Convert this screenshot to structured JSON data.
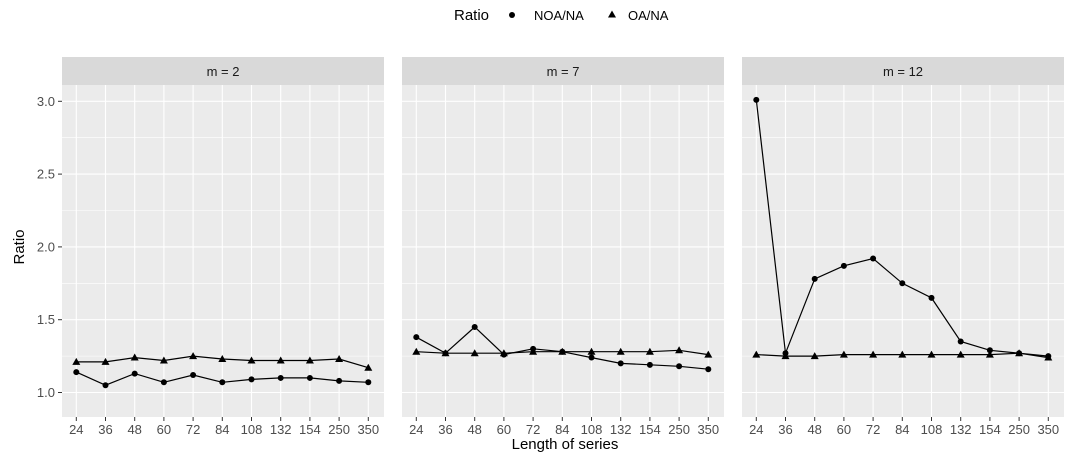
{
  "chart_data": {
    "type": "line",
    "xlabel": "Length of series",
    "ylabel": "Ratio",
    "ylim": [
      1.0,
      3.0
    ],
    "yticks": [
      "1.0",
      "1.5",
      "2.0",
      "2.5",
      "3.0"
    ],
    "categories": [
      "24",
      "36",
      "48",
      "60",
      "72",
      "84",
      "108",
      "132",
      "154",
      "250",
      "350"
    ],
    "legend": {
      "title": "Ratio",
      "position": "top",
      "entries": [
        {
          "name": "NOA/NA",
          "marker": "circle"
        },
        {
          "name": "OA/NA",
          "marker": "triangle"
        }
      ]
    },
    "panels": [
      {
        "label": "m = 2",
        "series": [
          {
            "name": "NOA/NA",
            "marker": "circle",
            "values": [
              1.14,
              1.05,
              1.13,
              1.07,
              1.12,
              1.07,
              1.09,
              1.1,
              1.1,
              1.08,
              1.07
            ]
          },
          {
            "name": "OA/NA",
            "marker": "triangle",
            "values": [
              1.21,
              1.21,
              1.24,
              1.22,
              1.25,
              1.23,
              1.22,
              1.22,
              1.22,
              1.23,
              1.17
            ]
          }
        ]
      },
      {
        "label": "m = 7",
        "series": [
          {
            "name": "NOA/NA",
            "marker": "circle",
            "values": [
              1.38,
              1.27,
              1.45,
              1.26,
              1.3,
              1.28,
              1.24,
              1.2,
              1.19,
              1.18,
              1.16
            ]
          },
          {
            "name": "OA/NA",
            "marker": "triangle",
            "values": [
              1.28,
              1.27,
              1.27,
              1.27,
              1.28,
              1.28,
              1.28,
              1.28,
              1.28,
              1.29,
              1.26
            ]
          }
        ]
      },
      {
        "label": "m = 12",
        "series": [
          {
            "name": "NOA/NA",
            "marker": "circle",
            "values": [
              3.01,
              1.27,
              1.78,
              1.87,
              1.92,
              1.75,
              1.65,
              1.35,
              1.29,
              1.27,
              1.25
            ]
          },
          {
            "name": "OA/NA",
            "marker": "triangle",
            "values": [
              1.26,
              1.25,
              1.25,
              1.26,
              1.26,
              1.26,
              1.26,
              1.26,
              1.26,
              1.27,
              1.24
            ]
          }
        ]
      }
    ]
  }
}
